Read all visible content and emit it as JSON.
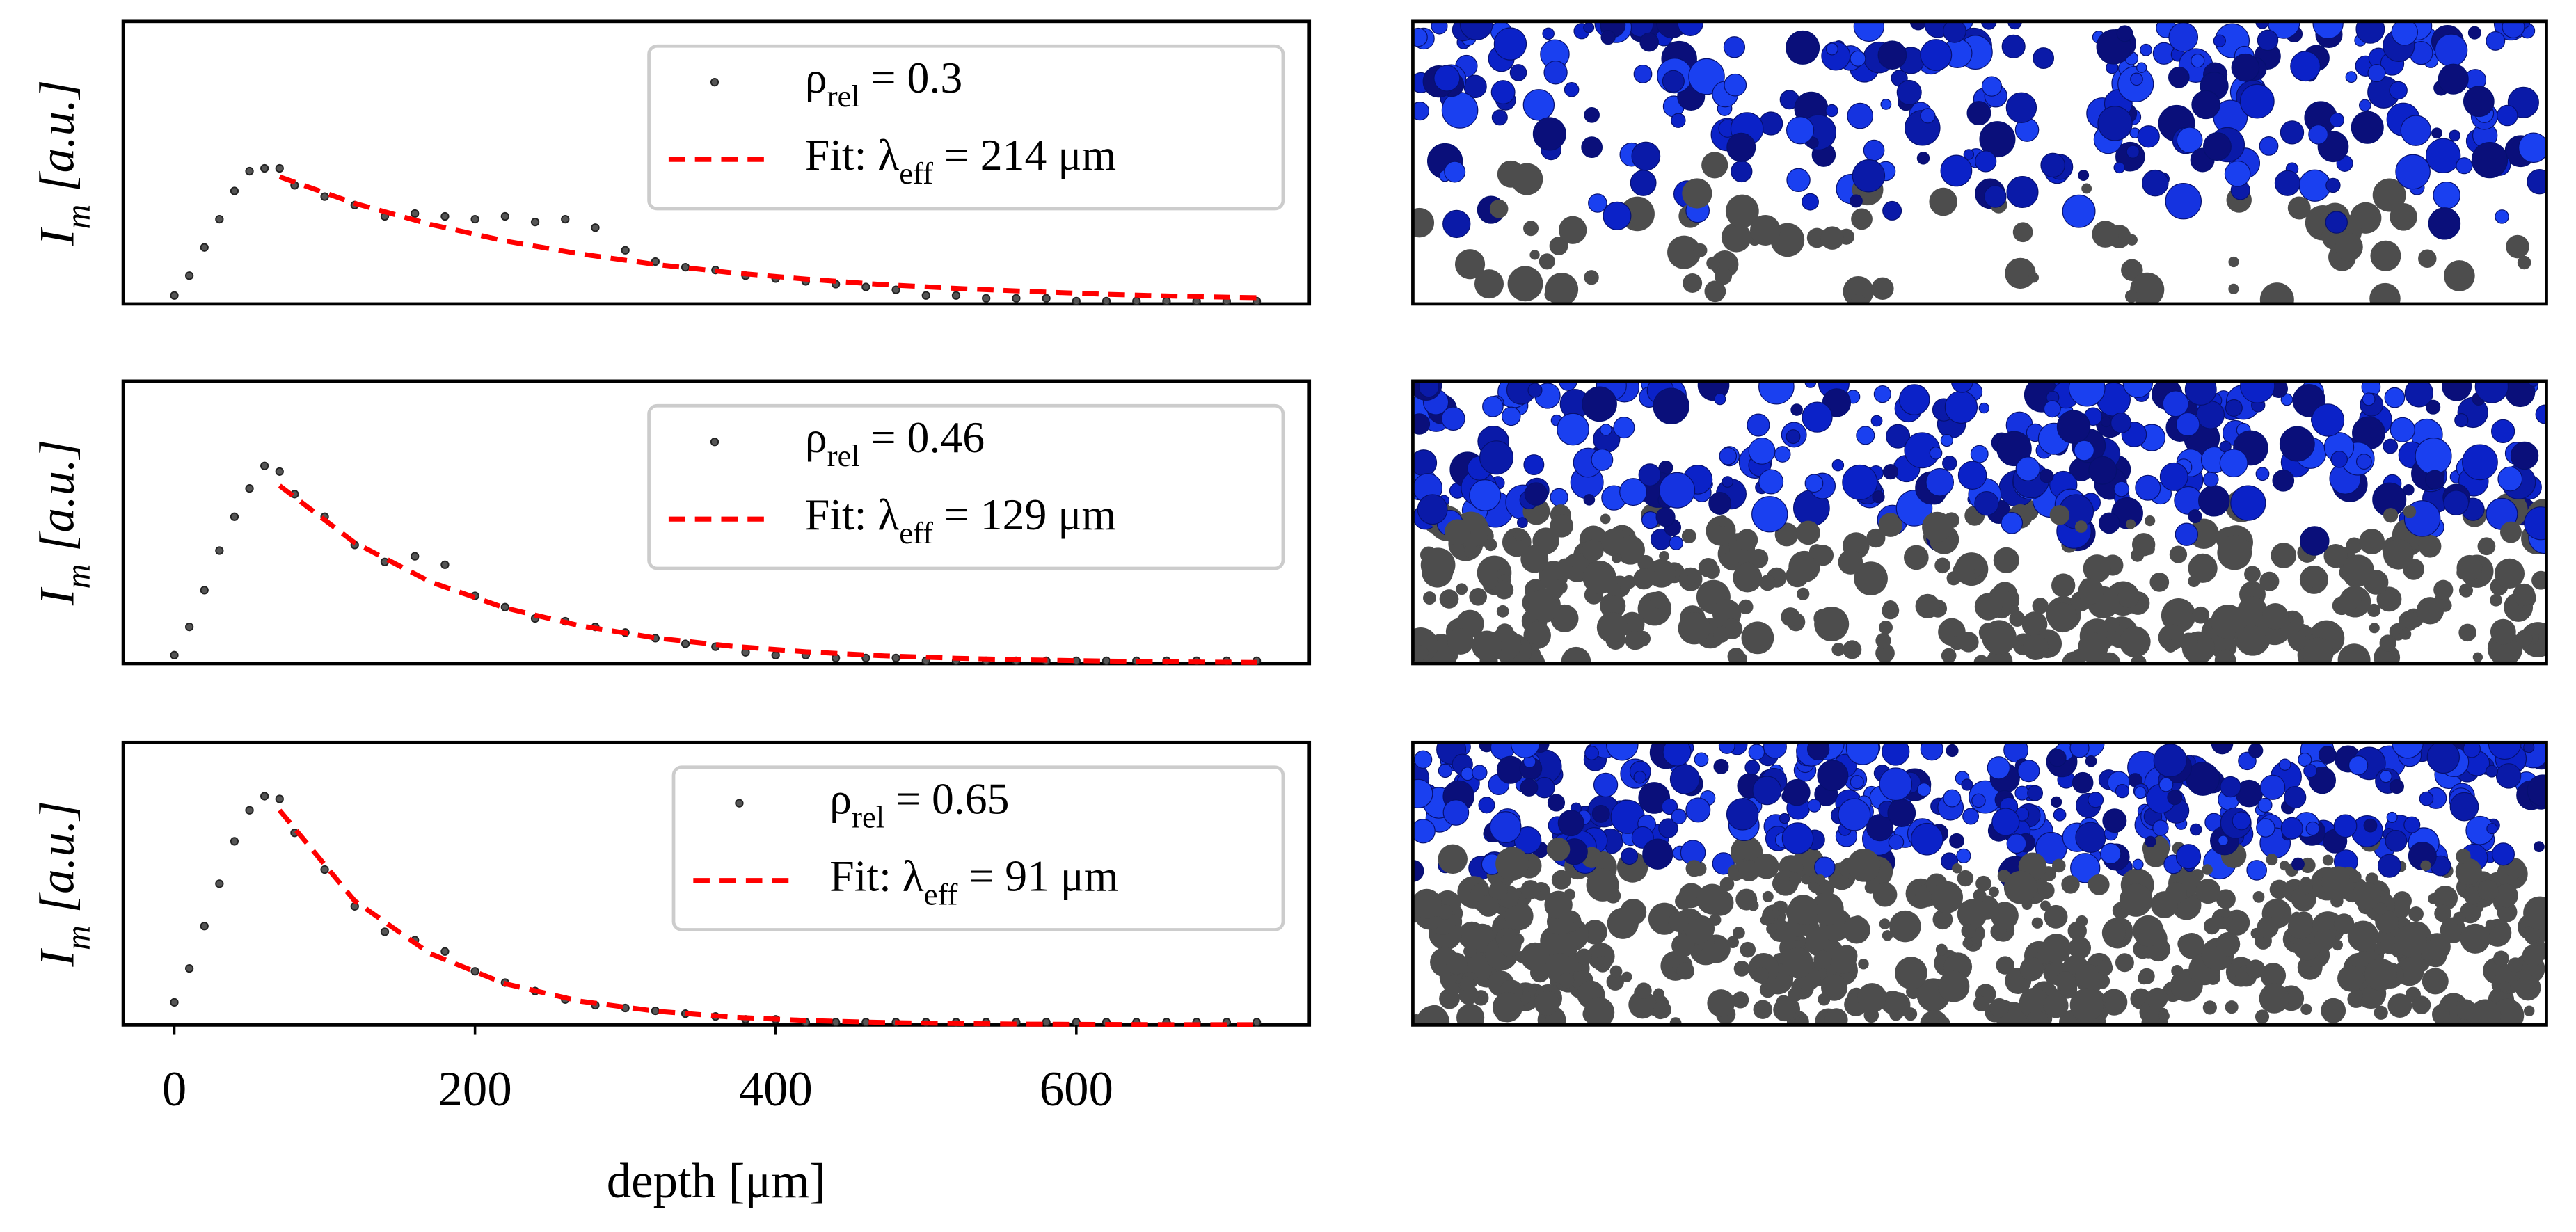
{
  "chart_data": [
    {
      "type": "scatter",
      "ylabel": "Im [a.u.]",
      "xlim": [
        -34,
        755
      ],
      "ylim": [
        0,
        1
      ],
      "series": [
        {
          "type": "scatter",
          "name": "ρrel = 0.3",
          "color": "#555555",
          "x": [
            0,
            10,
            20,
            30,
            40,
            50,
            60,
            70,
            80,
            100,
            120,
            140,
            160,
            180,
            200,
            220,
            240,
            260,
            280,
            300,
            320,
            340,
            360,
            380,
            400,
            420,
            440,
            460,
            480,
            500,
            520,
            540,
            560,
            580,
            600,
            620,
            640,
            660,
            680,
            700,
            720
          ],
          "values": [
            0.03,
            0.1,
            0.2,
            0.3,
            0.4,
            0.47,
            0.48,
            0.48,
            0.42,
            0.38,
            0.35,
            0.31,
            0.32,
            0.31,
            0.3,
            0.31,
            0.29,
            0.3,
            0.27,
            0.19,
            0.15,
            0.13,
            0.12,
            0.1,
            0.09,
            0.08,
            0.07,
            0.06,
            0.05,
            0.03,
            0.03,
            0.02,
            0.02,
            0.02,
            0.01,
            0.01,
            0.01,
            0.01,
            0.01,
            0.01,
            0.01
          ]
        },
        {
          "type": "line",
          "name": "Fit: λeff = 214 μm",
          "color": "#ff0000",
          "x": [
            70,
            120,
            170,
            220,
            270,
            320,
            370,
            420,
            470,
            520,
            570,
            620,
            670,
            720
          ],
          "values": [
            0.45,
            0.356,
            0.282,
            0.223,
            0.177,
            0.14,
            0.111,
            0.088,
            0.069,
            0.055,
            0.044,
            0.034,
            0.027,
            0.022
          ]
        }
      ]
    },
    {
      "type": "scatter",
      "ylabel": "Im [a.u.]",
      "xlim": [
        -34,
        755
      ],
      "ylim": [
        0,
        1
      ],
      "series": [
        {
          "type": "scatter",
          "name": "ρrel = 0.46",
          "color": "#555555",
          "x": [
            0,
            10,
            20,
            30,
            40,
            50,
            60,
            70,
            80,
            100,
            120,
            140,
            160,
            180,
            200,
            220,
            240,
            260,
            280,
            300,
            320,
            340,
            360,
            380,
            400,
            420,
            440,
            460,
            480,
            500,
            520,
            540,
            560,
            580,
            600,
            620,
            640,
            660,
            680,
            700,
            720
          ],
          "values": [
            0.03,
            0.13,
            0.26,
            0.4,
            0.52,
            0.62,
            0.7,
            0.68,
            0.6,
            0.52,
            0.42,
            0.36,
            0.38,
            0.35,
            0.24,
            0.2,
            0.16,
            0.15,
            0.13,
            0.11,
            0.09,
            0.07,
            0.06,
            0.04,
            0.03,
            0.03,
            0.02,
            0.02,
            0.02,
            0.01,
            0.01,
            0.01,
            0.01,
            0.01,
            0.01,
            0.01,
            0.01,
            0.01,
            0.01,
            0.01,
            0.01
          ]
        },
        {
          "type": "line",
          "name": "Fit: λeff = 129 μm",
          "color": "#ff0000",
          "x": [
            70,
            120,
            170,
            220,
            270,
            320,
            370,
            420,
            470,
            520,
            570,
            620,
            670,
            720
          ],
          "values": [
            0.63,
            0.428,
            0.29,
            0.197,
            0.134,
            0.091,
            0.062,
            0.042,
            0.028,
            0.019,
            0.013,
            0.009,
            0.006,
            0.004
          ]
        }
      ]
    },
    {
      "type": "scatter",
      "ylabel": "Im [a.u.]",
      "xlabel": "depth [μm]",
      "xlim": [
        -34,
        755
      ],
      "ylim": [
        0,
        1
      ],
      "xticks": [
        0,
        200,
        400,
        600
      ],
      "series": [
        {
          "type": "scatter",
          "name": "ρrel = 0.65",
          "color": "#555555",
          "x": [
            0,
            10,
            20,
            30,
            40,
            50,
            60,
            70,
            80,
            100,
            120,
            140,
            160,
            180,
            200,
            220,
            240,
            260,
            280,
            300,
            320,
            340,
            360,
            380,
            400,
            420,
            440,
            460,
            480,
            500,
            520,
            540,
            560,
            580,
            600,
            620,
            640,
            660,
            680,
            700,
            720
          ],
          "values": [
            0.08,
            0.2,
            0.35,
            0.5,
            0.65,
            0.76,
            0.81,
            0.8,
            0.68,
            0.55,
            0.42,
            0.33,
            0.3,
            0.26,
            0.19,
            0.15,
            0.12,
            0.09,
            0.07,
            0.06,
            0.05,
            0.04,
            0.03,
            0.02,
            0.02,
            0.01,
            0.01,
            0.01,
            0.01,
            0.01,
            0.01,
            0.01,
            0.01,
            0.01,
            0.01,
            0.01,
            0.01,
            0.01,
            0.01,
            0.01,
            0.01
          ]
        },
        {
          "type": "line",
          "name": "Fit: λeff = 91 μm",
          "color": "#ff0000",
          "x": [
            70,
            120,
            170,
            220,
            270,
            320,
            370,
            420,
            470,
            520,
            570,
            620,
            670,
            720
          ],
          "values": [
            0.76,
            0.439,
            0.253,
            0.146,
            0.084,
            0.049,
            0.028,
            0.016,
            0.009,
            0.005,
            0.003,
            0.002,
            0.001,
            0.001
          ]
        }
      ]
    }
  ]
}
